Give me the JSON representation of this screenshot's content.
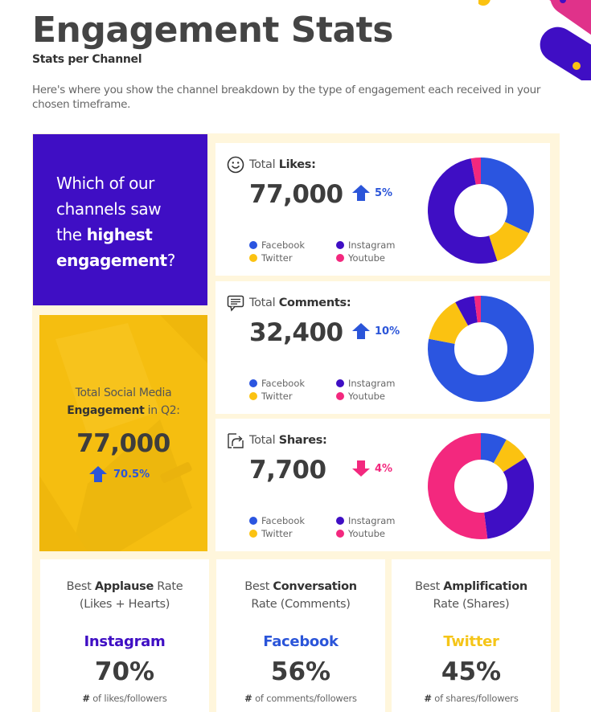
{
  "header": {
    "title": "Engagement Stats",
    "subtitle": "Stats per Channel",
    "description": "Here's where you show the channel breakdown by the type of engagement each received in your chosen timeframe."
  },
  "colors": {
    "facebook": "#2b55e0",
    "twitter": "#fbc211",
    "instagram": "#3f0ec4",
    "youtube": "#f3287e",
    "up": "#2b55d9",
    "down": "#f3287e",
    "panel_bg": "#fff6dc",
    "question_bg": "#3f0ec4",
    "total_bg": "#f5be10"
  },
  "question": {
    "line1": "Which of our",
    "line2": "channels saw",
    "line3_plain": "the ",
    "line3_bold": "highest",
    "line4_bold": "engagement",
    "line4_plain": "?"
  },
  "total": {
    "label_line1": "Total Social Media",
    "label_bold": "Engagement",
    "label_rest": " in Q2:",
    "value": "77,000",
    "change": "70.5%",
    "direction": "up"
  },
  "legend": [
    "Facebook",
    "Instagram",
    "Twitter",
    "Youtube"
  ],
  "stats": [
    {
      "icon": "smiley-icon",
      "label_plain": "Total ",
      "label_bold": "Likes:",
      "value": "77,000",
      "change": "5%",
      "direction": "up"
    },
    {
      "icon": "comment-icon",
      "label_plain": "Total ",
      "label_bold": "Comments:",
      "value": "32,400",
      "change": "10%",
      "direction": "up"
    },
    {
      "icon": "share-icon",
      "label_plain": "Total ",
      "label_bold": "Shares:",
      "value": "7,700",
      "change": "4%",
      "direction": "down"
    }
  ],
  "rates": [
    {
      "line1_plain": "Best ",
      "line1_bold": "Applause",
      "line1_rest": " Rate",
      "line2": "(Likes + Hearts)",
      "channel": "Instagram",
      "channel_color": "#3f0ec4",
      "pct": "70%",
      "note_bold": "#",
      "note": " of likes/followers"
    },
    {
      "line1_plain": "Best ",
      "line1_bold": "Conversation",
      "line1_rest": "",
      "line2": "Rate (Comments)",
      "channel": "Facebook",
      "channel_color": "#2b55d9",
      "pct": "56%",
      "note_bold": "#",
      "note": " of comments/followers"
    },
    {
      "line1_plain": "Best ",
      "line1_bold": "Amplification",
      "line1_rest": "",
      "line2": "Rate (Shares)",
      "channel": "Twitter",
      "channel_color": "#f5c518",
      "pct": "45%",
      "note_bold": "#",
      "note": " of shares/followers"
    }
  ],
  "chart_data": [
    {
      "type": "pie",
      "title": "Total Likes",
      "categories": [
        "Facebook",
        "Twitter",
        "Instagram",
        "Youtube"
      ],
      "values": [
        32,
        13,
        52,
        3
      ],
      "unit": "% (estimated from donut)",
      "total": 77000,
      "change": "+5%",
      "legend_position": "left"
    },
    {
      "type": "pie",
      "title": "Total Comments",
      "categories": [
        "Facebook",
        "Twitter",
        "Instagram",
        "Youtube"
      ],
      "values": [
        78,
        14,
        6,
        2
      ],
      "unit": "% (estimated from donut)",
      "total": 32400,
      "change": "+10%",
      "legend_position": "left"
    },
    {
      "type": "pie",
      "title": "Total Shares",
      "categories": [
        "Facebook",
        "Twitter",
        "Instagram",
        "Youtube"
      ],
      "values": [
        8,
        8,
        32,
        52
      ],
      "unit": "% (estimated from donut)",
      "total": 7700,
      "change": "-4%",
      "legend_position": "left"
    }
  ]
}
